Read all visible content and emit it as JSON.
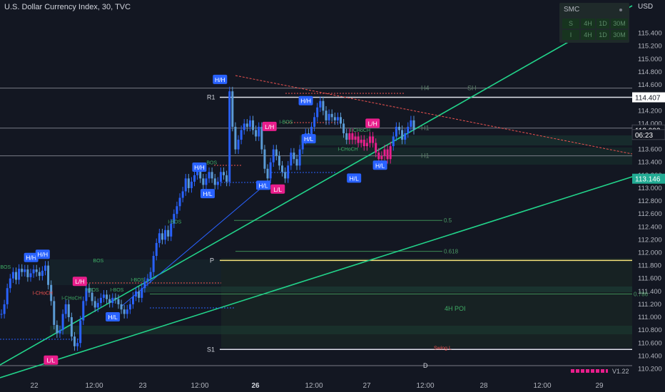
{
  "header": {
    "title": "U.S. Dollar Currency Index, 30, TVC"
  },
  "axis": {
    "currency": "USD"
  },
  "smc_panel": {
    "title": "SMC",
    "rows": [
      {
        "label": "S",
        "cells": [
          "4H",
          "1D",
          "30M"
        ]
      },
      {
        "label": "I",
        "cells": [
          "4H",
          "1D",
          "30M"
        ]
      }
    ]
  },
  "version": "V1.22",
  "colors": {
    "background": "#131722",
    "up": "#2962ff",
    "down": "#5b9bd5",
    "pink": "#e91e8c",
    "green_line": "#22d38a",
    "red_dash": "#ef5350",
    "price_tag": "#131722",
    "grid": "#1e222d"
  },
  "chart_data": {
    "type": "line",
    "symbol": "U.S. Dollar Currency Index",
    "interval": "30",
    "ylim": [
      110.15,
      115.65
    ],
    "ticks_y": [
      "115.400",
      "115.200",
      "115.000",
      "114.800",
      "114.600",
      "114.400",
      "114.200",
      "114.000",
      "113.800",
      "113.600",
      "113.400",
      "113.200",
      "113.000",
      "112.800",
      "112.600",
      "112.400",
      "112.200",
      "112.000",
      "111.800",
      "111.600",
      "111.400",
      "111.200",
      "111.000",
      "110.800",
      "110.600",
      "110.400",
      "110.200"
    ],
    "ticks_x": [
      "22",
      "12:00",
      "23",
      "12:00",
      "26",
      "12:00",
      "27",
      "12:00",
      "28",
      "12:00",
      "29"
    ],
    "price_labels": [
      {
        "text": "114.407",
        "value": 114.407,
        "style": "white"
      },
      {
        "text": "113.902",
        "value": 113.902,
        "style": "dark"
      },
      {
        "text": "06:23",
        "value": 113.83,
        "style": "dark"
      },
      {
        "text": "113.146",
        "value": 113.146,
        "style": "green"
      }
    ],
    "levels": [
      {
        "name": "R1",
        "value": 114.407
      },
      {
        "name": "P",
        "value": 111.88
      },
      {
        "name": "S1",
        "value": 110.5
      },
      {
        "name": "D",
        "value": 110.25
      },
      {
        "name": "H4",
        "value": 114.55
      },
      {
        "name": "H1",
        "value": 113.5
      },
      {
        "name": "H1",
        "value": 113.93
      },
      {
        "name": "SH",
        "value": 114.55
      }
    ],
    "fib": [
      {
        "name": "0.5",
        "value": 112.5
      },
      {
        "name": "0.618",
        "value": 112.02
      },
      {
        "name": "0.786",
        "value": 111.36
      }
    ],
    "annotations": [
      {
        "text": "H/H",
        "t": 0.072,
        "value": 111.92,
        "kind": "blue"
      },
      {
        "text": "H/H",
        "t": 0.1,
        "value": 111.97,
        "kind": "blue"
      },
      {
        "text": "L/L",
        "t": 0.12,
        "value": 110.33,
        "kind": "pink"
      },
      {
        "text": "L/H",
        "t": 0.19,
        "value": 111.55,
        "kind": "pink"
      },
      {
        "text": "H/L",
        "t": 0.27,
        "value": 111.0,
        "kind": "blue"
      },
      {
        "text": "H/H",
        "t": 0.48,
        "value": 113.32,
        "kind": "blue"
      },
      {
        "text": "H/L",
        "t": 0.5,
        "value": 112.91,
        "kind": "blue"
      },
      {
        "text": "H/H",
        "t": 0.53,
        "value": 114.68,
        "kind": "blue"
      },
      {
        "text": "H/L",
        "t": 0.635,
        "value": 113.04,
        "kind": "blue"
      },
      {
        "text": "L/L",
        "t": 0.67,
        "value": 112.98,
        "kind": "pink"
      },
      {
        "text": "L/H",
        "t": 0.65,
        "value": 113.95,
        "kind": "pink"
      },
      {
        "text": "H/L",
        "t": 0.745,
        "value": 113.76,
        "kind": "blue"
      },
      {
        "text": "H/H",
        "t": 0.738,
        "value": 114.35,
        "kind": "blue"
      },
      {
        "text": "H/L",
        "t": 0.855,
        "value": 113.15,
        "kind": "blue"
      },
      {
        "text": "L/H",
        "t": 0.9,
        "value": 114.0,
        "kind": "pink"
      },
      {
        "text": "H/L",
        "t": 0.918,
        "value": 113.35,
        "kind": "blue"
      }
    ],
    "small_labels": [
      {
        "text": "BOS",
        "t": 0.01,
        "value": 111.75
      },
      {
        "text": "BOS",
        "t": 0.235,
        "value": 111.85
      },
      {
        "text": "I-CHoCH",
        "t": 0.1,
        "value": 111.35
      },
      {
        "text": "I-CHoCH",
        "t": 0.17,
        "value": 111.27
      },
      {
        "text": "I-BOS",
        "t": 0.22,
        "value": 111.4
      },
      {
        "text": "I-BOS",
        "t": 0.28,
        "value": 111.4
      },
      {
        "text": "I-BOS",
        "t": 0.33,
        "value": 111.55
      },
      {
        "text": "I-BOS",
        "t": 0.42,
        "value": 112.45
      },
      {
        "text": "BOS",
        "t": 0.51,
        "value": 113.37
      },
      {
        "text": "I-BOS",
        "t": 0.69,
        "value": 114.0
      },
      {
        "text": "I-CHoCH",
        "t": 0.87,
        "value": 113.87
      },
      {
        "text": "I-CHoCH",
        "t": 0.84,
        "value": 113.58
      },
      {
        "text": "4H POI",
        "t": 1.1,
        "value": 111.1
      },
      {
        "text": "Swing L",
        "t": 1.07,
        "value": 110.5
      }
    ],
    "series": [
      {
        "values": [
          111.05,
          111.2,
          111.45,
          111.6,
          111.7,
          111.58,
          111.75,
          111.7,
          111.74,
          111.62,
          111.68,
          111.74,
          111.7,
          111.64,
          111.72,
          111.8,
          111.5,
          111.25,
          110.88,
          110.75,
          110.8,
          111.05,
          111.2,
          111.0,
          110.7,
          110.55,
          110.6,
          110.95,
          111.25,
          111.45,
          111.38,
          111.25,
          111.15,
          111.22,
          111.3,
          111.35,
          111.28,
          111.22,
          111.3,
          111.28,
          111.2,
          111.12,
          111.05,
          111.12,
          111.2,
          111.32,
          111.4,
          111.3,
          111.45,
          111.55,
          111.6,
          111.7,
          111.95,
          112.15,
          112.3,
          112.2,
          112.35,
          112.25,
          112.45,
          112.6,
          112.72,
          112.85,
          112.95,
          113.15,
          113.0,
          113.1,
          113.2,
          113.3,
          113.15,
          113.05,
          113.15,
          113.25,
          113.15,
          113.05,
          113.1,
          113.25,
          113.2,
          113.1,
          114.5,
          113.95,
          113.6,
          113.75,
          113.9,
          114.0,
          113.95,
          114.05,
          113.9,
          113.8,
          113.95,
          113.6,
          113.3,
          113.15,
          113.4,
          113.6,
          113.5,
          113.35,
          113.25,
          113.15,
          113.35,
          113.55,
          113.45,
          113.35,
          113.6,
          113.75,
          113.85,
          113.8,
          113.95,
          114.1,
          114.25,
          114.35,
          114.2,
          114.05,
          114.15,
          114.1,
          114.05,
          114.1,
          114.0,
          113.85,
          113.75,
          113.85,
          113.75,
          113.8,
          113.7,
          113.75,
          113.65,
          113.7,
          113.8,
          113.7,
          113.55,
          113.45,
          113.5,
          113.6,
          113.45,
          113.65,
          113.8,
          113.95,
          113.9,
          113.75,
          113.85,
          113.95,
          114.05,
          113.9
        ]
      }
    ]
  }
}
